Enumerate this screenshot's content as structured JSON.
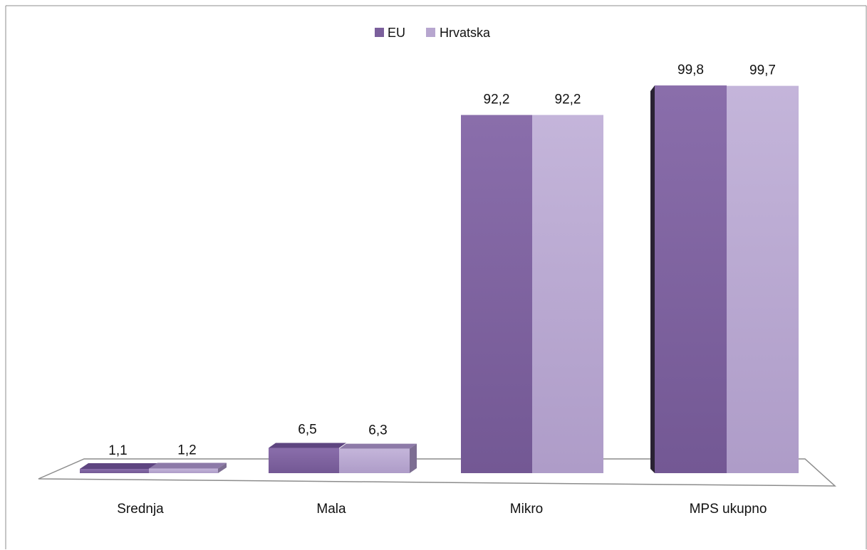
{
  "chart_data": {
    "type": "bar",
    "categories": [
      "Srednja",
      "Mala",
      "Mikro",
      "MPS ukupno"
    ],
    "series": [
      {
        "name": "EU",
        "values": [
          1.1,
          6.5,
          92.2,
          99.8
        ],
        "labels": [
          "1,1",
          "6,5",
          "92,2",
          "99,8"
        ]
      },
      {
        "name": "Hrvatska",
        "values": [
          1.2,
          6.3,
          92.2,
          99.7
        ],
        "labels": [
          "1,2",
          "6,3",
          "92,2",
          "99,7"
        ]
      }
    ],
    "ylim": [
      0,
      100
    ],
    "grid": false,
    "legend_position": "top-center",
    "colors": {
      "EU": "#7b5f9c",
      "Hrvatska": "#b7a6cf",
      "EU_top": "#5e4580",
      "Hrvatska_top": "#8d7aa8"
    }
  }
}
